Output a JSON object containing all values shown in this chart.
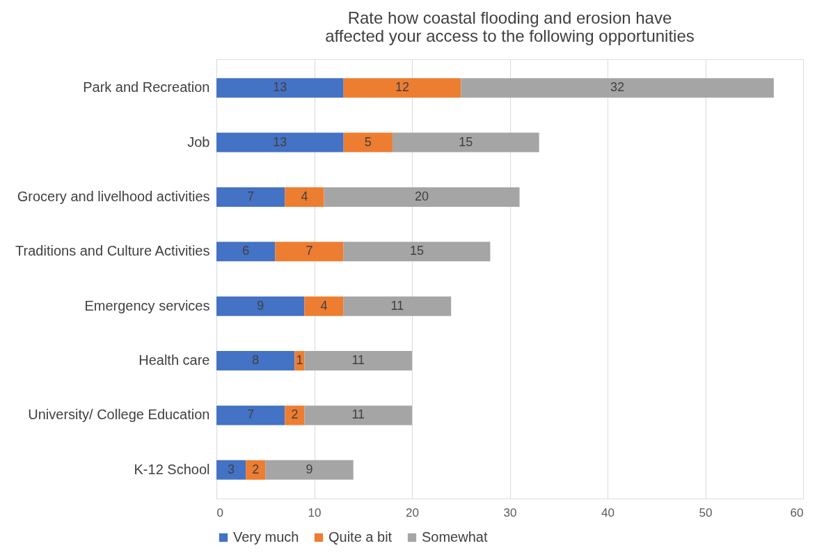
{
  "chart_data": {
    "type": "bar",
    "orientation": "horizontal",
    "stacked": true,
    "title": "Rate how coastal flooding and erosion have affected your access to the following opportunities",
    "categories": [
      "Park and Recreation",
      "Job",
      "Grocery and livelhood activities",
      "Traditions and Culture Activities",
      "Emergency services",
      "Health care",
      "University/ College Education",
      "K-12 School"
    ],
    "series": [
      {
        "name": "Very much",
        "color": "#4472c4",
        "values": [
          13,
          13,
          7,
          6,
          9,
          8,
          7,
          3
        ]
      },
      {
        "name": "Quite a bit",
        "color": "#ed7d31",
        "values": [
          12,
          5,
          4,
          7,
          4,
          1,
          2,
          2
        ]
      },
      {
        "name": "Somewhat",
        "color": "#a5a5a5",
        "values": [
          32,
          15,
          20,
          15,
          11,
          11,
          11,
          9
        ]
      }
    ],
    "xlim": [
      0,
      60
    ],
    "xticks": [
      0,
      10,
      20,
      30,
      40,
      50,
      60
    ],
    "grid": "x",
    "legend": "bottom",
    "data_labels": true
  }
}
